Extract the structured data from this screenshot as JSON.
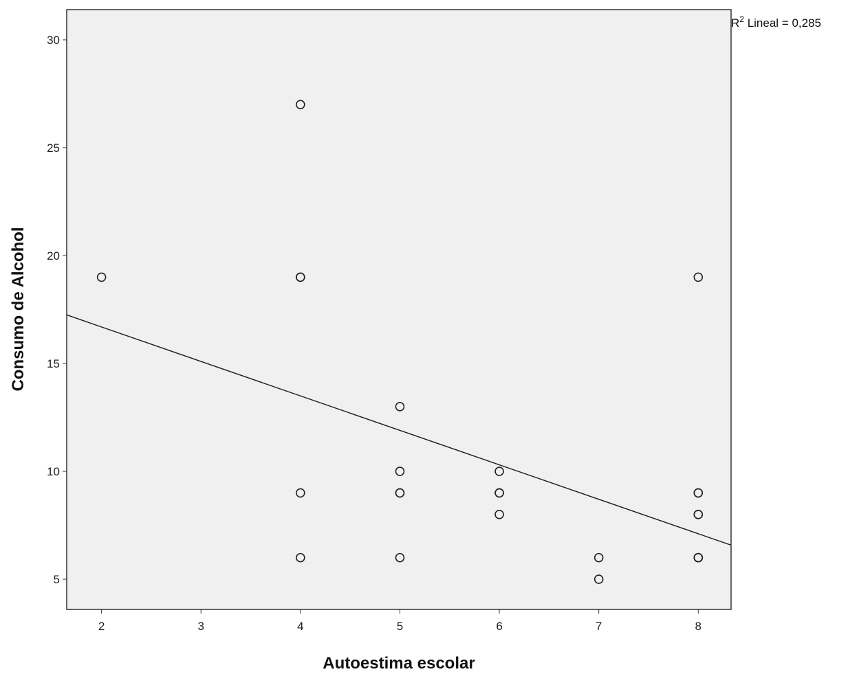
{
  "chart_data": {
    "type": "scatter",
    "title": "",
    "xlabel": "Autoestima escolar",
    "ylabel": "Consumo de Alcohol",
    "xlim": [
      1.65,
      8.33
    ],
    "ylim": [
      3.6,
      31.4
    ],
    "xticks": [
      2,
      3,
      4,
      5,
      6,
      7,
      8
    ],
    "yticks": [
      5,
      10,
      15,
      20,
      25,
      30
    ],
    "tick_labels_x": [
      "2",
      "3",
      "4",
      "5",
      "6",
      "7",
      "8"
    ],
    "tick_labels_y": [
      "5",
      "10",
      "15",
      "20",
      "25",
      "30"
    ],
    "points": [
      {
        "x": 2,
        "y": 19
      },
      {
        "x": 4,
        "y": 27
      },
      {
        "x": 4,
        "y": 19
      },
      {
        "x": 4,
        "y": 19
      },
      {
        "x": 4,
        "y": 9
      },
      {
        "x": 4,
        "y": 6
      },
      {
        "x": 5,
        "y": 13
      },
      {
        "x": 5,
        "y": 10
      },
      {
        "x": 5,
        "y": 9
      },
      {
        "x": 5,
        "y": 9
      },
      {
        "x": 5,
        "y": 6
      },
      {
        "x": 6,
        "y": 10
      },
      {
        "x": 6,
        "y": 9
      },
      {
        "x": 6,
        "y": 9
      },
      {
        "x": 6,
        "y": 8
      },
      {
        "x": 7,
        "y": 6
      },
      {
        "x": 7,
        "y": 5
      },
      {
        "x": 8,
        "y": 19
      },
      {
        "x": 8,
        "y": 9
      },
      {
        "x": 8,
        "y": 9
      },
      {
        "x": 8,
        "y": 8
      },
      {
        "x": 8,
        "y": 8
      },
      {
        "x": 8,
        "y": 6
      },
      {
        "x": 8,
        "y": 6
      },
      {
        "x": 8,
        "y": 6
      }
    ],
    "fit_line": {
      "x": [
        1.65,
        8.33
      ],
      "y": [
        17.25,
        6.58
      ]
    },
    "annotation": {
      "prefix": "R",
      "superscript": "2",
      "text": " Lineal = 0,285"
    },
    "grid": false,
    "colors": {
      "plot_background": "#f0f0f0",
      "marker_stroke": "#222222",
      "line": "#222222"
    }
  }
}
